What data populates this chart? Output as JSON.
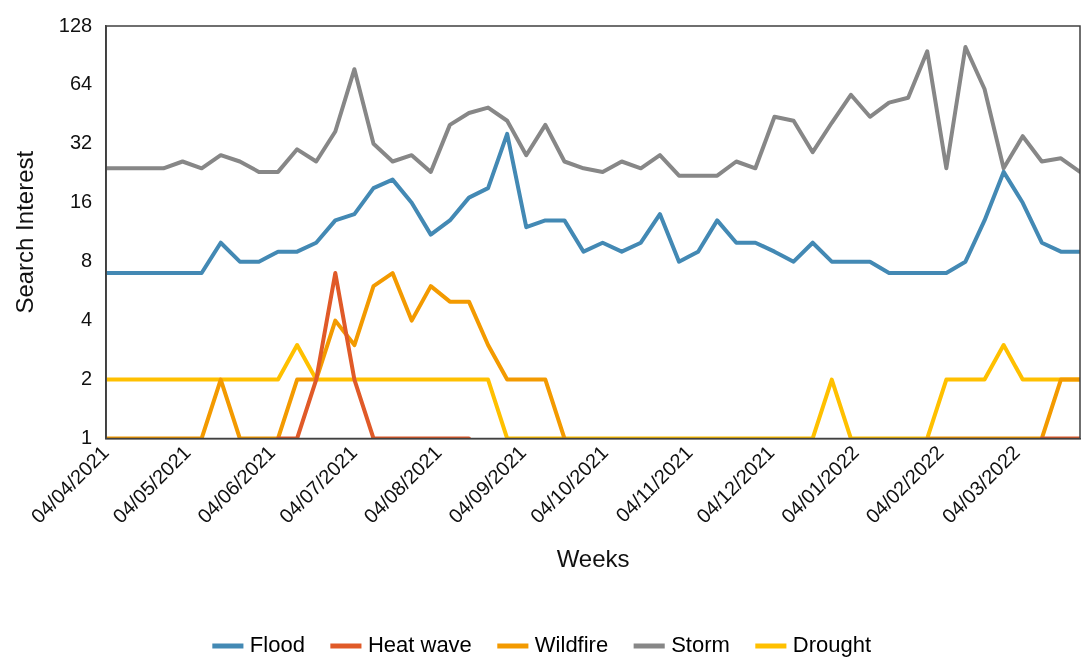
{
  "chart_data": {
    "type": "line",
    "xlabel": "Weeks",
    "ylabel": "Search Interest",
    "log": "y",
    "grid": false,
    "legend": "bottom",
    "marker": "none",
    "line_style": "solid",
    "x": [
      "2021-04-04",
      "2021-04-11",
      "2021-04-18",
      "2021-04-25",
      "2021-05-02",
      "2021-05-09",
      "2021-05-16",
      "2021-05-23",
      "2021-05-30",
      "2021-06-06",
      "2021-06-13",
      "2021-06-20",
      "2021-06-27",
      "2021-07-04",
      "2021-07-11",
      "2021-07-18",
      "2021-07-25",
      "2021-08-01",
      "2021-08-08",
      "2021-08-15",
      "2021-08-22",
      "2021-08-29",
      "2021-09-05",
      "2021-09-12",
      "2021-09-19",
      "2021-09-26",
      "2021-10-03",
      "2021-10-10",
      "2021-10-17",
      "2021-10-24",
      "2021-10-31",
      "2021-11-07",
      "2021-11-14",
      "2021-11-21",
      "2021-11-28",
      "2021-12-05",
      "2021-12-12",
      "2021-12-19",
      "2021-12-26",
      "2022-01-02",
      "2022-01-09",
      "2022-01-16",
      "2022-01-23",
      "2022-01-30",
      "2022-02-06",
      "2022-02-13",
      "2022-02-20",
      "2022-02-27",
      "2022-03-06",
      "2022-03-13",
      "2022-03-20",
      "2022-03-27"
    ],
    "xlim": [
      "2021-04-04",
      "2022-03-27"
    ],
    "xticks": [
      {
        "value": "2021-04-04",
        "label": "04/04/2021"
      },
      {
        "value": "2021-05-04",
        "label": "04/05/2021"
      },
      {
        "value": "2021-06-04",
        "label": "04/06/2021"
      },
      {
        "value": "2021-07-04",
        "label": "04/07/2021"
      },
      {
        "value": "2021-08-04",
        "label": "04/08/2021"
      },
      {
        "value": "2021-09-04",
        "label": "04/09/2021"
      },
      {
        "value": "2021-10-04",
        "label": "04/10/2021"
      },
      {
        "value": "2021-11-04",
        "label": "04/11/2021"
      },
      {
        "value": "2021-12-04",
        "label": "04/12/2021"
      },
      {
        "value": "2022-01-04",
        "label": "04/01/2022"
      },
      {
        "value": "2022-02-04",
        "label": "04/02/2022"
      },
      {
        "value": "2022-03-04",
        "label": "04/03/2022"
      }
    ],
    "ylim": [
      1,
      128
    ],
    "yticks": [
      1,
      2,
      4,
      8,
      16,
      32,
      64,
      128
    ],
    "series": [
      {
        "name": "Flood",
        "color": "#4389b4",
        "values": [
          7,
          7,
          7,
          7,
          7,
          7,
          10,
          8,
          8,
          9,
          9,
          10,
          13,
          14,
          19,
          21,
          16,
          11,
          13,
          17,
          19,
          36,
          12,
          13,
          13,
          9,
          10,
          9,
          10,
          14,
          8,
          9,
          13,
          10,
          10,
          9,
          8,
          10,
          8,
          8,
          8,
          7,
          7,
          7,
          7,
          8,
          13,
          23,
          16,
          10,
          9,
          9
        ]
      },
      {
        "name": "Heat wave",
        "color": "#e05a28",
        "values": [
          null,
          null,
          null,
          null,
          null,
          null,
          null,
          null,
          null,
          1,
          1,
          2,
          7,
          2,
          1,
          1,
          1,
          1,
          1,
          1,
          null,
          null,
          null,
          null,
          null,
          null,
          null,
          null,
          null,
          null,
          null,
          null,
          null,
          null,
          null,
          null,
          null,
          null,
          null,
          null,
          null,
          null,
          null,
          null,
          null,
          null,
          null,
          null,
          null,
          1,
          1,
          1
        ]
      },
      {
        "name": "Wildfire",
        "color": "#f39a00",
        "values": [
          1,
          1,
          1,
          1,
          1,
          1,
          2,
          1,
          1,
          1,
          2,
          2,
          4,
          3,
          6,
          7,
          4,
          6,
          5,
          5,
          3,
          2,
          2,
          2,
          1,
          null,
          null,
          null,
          null,
          null,
          null,
          null,
          null,
          null,
          null,
          null,
          null,
          null,
          null,
          null,
          null,
          null,
          null,
          1,
          1,
          1,
          1,
          1,
          1,
          1,
          2,
          2
        ]
      },
      {
        "name": "Storm",
        "color": "#878787",
        "values": [
          24,
          24,
          24,
          24,
          26,
          24,
          28,
          26,
          23,
          23,
          30,
          26,
          37,
          77,
          32,
          26,
          28,
          23,
          40,
          46,
          49,
          42,
          28,
          40,
          26,
          24,
          23,
          26,
          24,
          28,
          22,
          22,
          22,
          26,
          24,
          44,
          42,
          29,
          41,
          57,
          44,
          52,
          55,
          95,
          24,
          100,
          61,
          24,
          35,
          26,
          27,
          23
        ]
      },
      {
        "name": "Drought",
        "color": "#ffc000",
        "values": [
          2,
          2,
          2,
          2,
          2,
          2,
          2,
          2,
          2,
          2,
          3,
          2,
          2,
          2,
          2,
          2,
          2,
          2,
          2,
          2,
          2,
          1,
          1,
          1,
          1,
          1,
          1,
          1,
          1,
          1,
          1,
          1,
          1,
          1,
          1,
          1,
          1,
          1,
          2,
          1,
          1,
          1,
          1,
          1,
          2,
          2,
          2,
          3,
          2,
          2,
          2,
          2
        ]
      }
    ]
  }
}
